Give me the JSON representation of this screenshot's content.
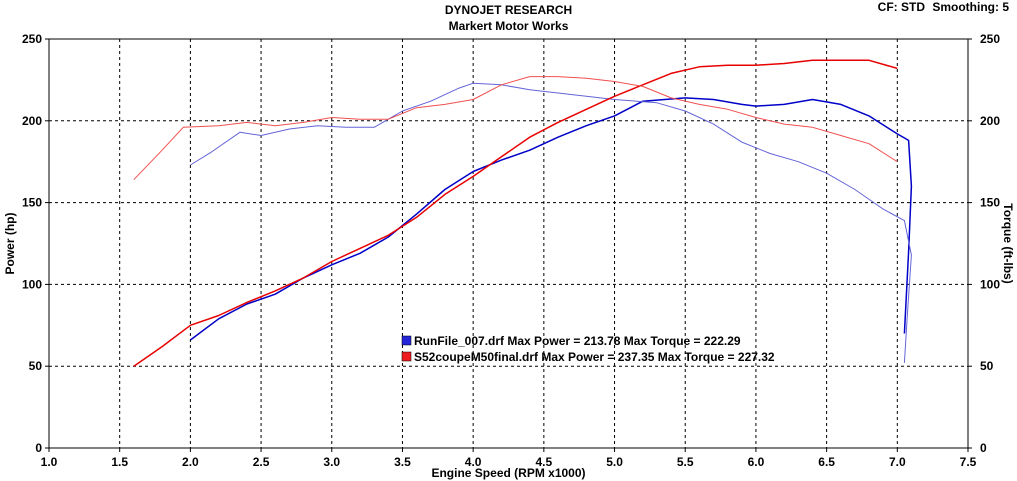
{
  "header": {
    "title": "DYNOJET RESEARCH",
    "subtitle": "Markert Motor Works",
    "cf_label": "CF: STD",
    "smoothing_label": "Smoothing: 5"
  },
  "chart_data": {
    "type": "line",
    "title": "DYNOJET RESEARCH",
    "subtitle": "Markert Motor Works",
    "xlabel": "Engine Speed (RPM x1000)",
    "ylabel": "Power (hp)",
    "y2label": "Torque (ft-lbs)",
    "xlim": [
      1.0,
      7.5
    ],
    "ylim": [
      0,
      250
    ],
    "y2lim": [
      0,
      250
    ],
    "x_ticks": [
      "1.0",
      "1.5",
      "2.0",
      "2.5",
      "3.0",
      "3.5",
      "4.0",
      "4.5",
      "5.0",
      "5.5",
      "6.0",
      "6.5",
      "7.0",
      "7.5"
    ],
    "y_ticks": [
      "0",
      "50",
      "100",
      "150",
      "200",
      "250"
    ],
    "y2_ticks": [
      "0",
      "50",
      "100",
      "150",
      "200",
      "250"
    ],
    "grid": true,
    "legend_position": "center-bottom",
    "legend": [
      {
        "text": "RunFile_007.drf Max Power = 213.78      Max Torque = 222.29",
        "color": "#2424d8"
      },
      {
        "text": "S52coupeM50final.drf Max Power = 237.35      Max Torque = 227.32",
        "color": "#ee1c1c"
      }
    ],
    "series": [
      {
        "name": "RunFile_007.drf",
        "measure": "Power",
        "color": "#0000c8",
        "width": 1.5,
        "points": [
          [
            2.0,
            66
          ],
          [
            2.2,
            79
          ],
          [
            2.4,
            88
          ],
          [
            2.6,
            94
          ],
          [
            2.8,
            104
          ],
          [
            3.0,
            112
          ],
          [
            3.2,
            119
          ],
          [
            3.4,
            129
          ],
          [
            3.6,
            143
          ],
          [
            3.8,
            158
          ],
          [
            4.0,
            169
          ],
          [
            4.2,
            176
          ],
          [
            4.4,
            182
          ],
          [
            4.6,
            190
          ],
          [
            4.8,
            197
          ],
          [
            5.0,
            203
          ],
          [
            5.2,
            212
          ],
          [
            5.5,
            214
          ],
          [
            5.7,
            213
          ],
          [
            5.9,
            210
          ],
          [
            6.0,
            209
          ],
          [
            6.2,
            210
          ],
          [
            6.4,
            213
          ],
          [
            6.6,
            210
          ],
          [
            6.8,
            203
          ],
          [
            7.0,
            192
          ],
          [
            7.08,
            188
          ],
          [
            7.1,
            160
          ],
          [
            7.08,
            120
          ],
          [
            7.05,
            70
          ]
        ]
      },
      {
        "name": "RunFile_007.drf",
        "measure": "Torque",
        "color": "#6464d8",
        "width": 1,
        "points": [
          [
            2.0,
            173
          ],
          [
            2.15,
            181
          ],
          [
            2.35,
            193
          ],
          [
            2.5,
            191
          ],
          [
            2.7,
            195
          ],
          [
            2.9,
            197
          ],
          [
            3.1,
            196
          ],
          [
            3.3,
            196
          ],
          [
            3.5,
            206
          ],
          [
            3.7,
            212
          ],
          [
            3.9,
            220
          ],
          [
            4.0,
            223
          ],
          [
            4.2,
            222
          ],
          [
            4.4,
            219
          ],
          [
            4.6,
            217
          ],
          [
            4.8,
            215
          ],
          [
            5.0,
            213
          ],
          [
            5.3,
            211
          ],
          [
            5.5,
            206
          ],
          [
            5.7,
            198
          ],
          [
            5.9,
            187
          ],
          [
            6.1,
            180
          ],
          [
            6.3,
            175
          ],
          [
            6.5,
            168
          ],
          [
            6.7,
            158
          ],
          [
            6.9,
            146
          ],
          [
            7.05,
            139
          ],
          [
            7.1,
            118
          ],
          [
            7.07,
            80
          ],
          [
            7.05,
            52
          ]
        ]
      },
      {
        "name": "S52coupeM50final.drf",
        "measure": "Power",
        "color": "#e80000",
        "width": 1.5,
        "points": [
          [
            1.6,
            50
          ],
          [
            1.8,
            62
          ],
          [
            2.0,
            75
          ],
          [
            2.2,
            81
          ],
          [
            2.4,
            89
          ],
          [
            2.6,
            96
          ],
          [
            2.8,
            104
          ],
          [
            3.0,
            114
          ],
          [
            3.2,
            122
          ],
          [
            3.4,
            130
          ],
          [
            3.6,
            141
          ],
          [
            3.8,
            155
          ],
          [
            4.0,
            166
          ],
          [
            4.2,
            178
          ],
          [
            4.4,
            190
          ],
          [
            4.6,
            199
          ],
          [
            4.8,
            207
          ],
          [
            5.0,
            215
          ],
          [
            5.2,
            222
          ],
          [
            5.4,
            229
          ],
          [
            5.6,
            233
          ],
          [
            5.8,
            234
          ],
          [
            6.0,
            234
          ],
          [
            6.2,
            235
          ],
          [
            6.4,
            237
          ],
          [
            6.6,
            237
          ],
          [
            6.8,
            237
          ],
          [
            7.0,
            232
          ]
        ]
      },
      {
        "name": "S52coupeM50final.drf",
        "measure": "Torque",
        "color": "#f05050",
        "width": 1,
        "points": [
          [
            1.6,
            164
          ],
          [
            1.8,
            182
          ],
          [
            1.95,
            196
          ],
          [
            2.2,
            197
          ],
          [
            2.4,
            199
          ],
          [
            2.6,
            197
          ],
          [
            2.8,
            199
          ],
          [
            3.0,
            202
          ],
          [
            3.2,
            201
          ],
          [
            3.4,
            201
          ],
          [
            3.6,
            208
          ],
          [
            3.8,
            210
          ],
          [
            4.0,
            213
          ],
          [
            4.2,
            222
          ],
          [
            4.4,
            227
          ],
          [
            4.6,
            227
          ],
          [
            4.8,
            226
          ],
          [
            5.0,
            224
          ],
          [
            5.2,
            221
          ],
          [
            5.4,
            214
          ],
          [
            5.6,
            210
          ],
          [
            5.8,
            207
          ],
          [
            6.0,
            202
          ],
          [
            6.2,
            198
          ],
          [
            6.4,
            196
          ],
          [
            6.6,
            191
          ],
          [
            6.8,
            186
          ],
          [
            7.0,
            175
          ]
        ]
      }
    ]
  }
}
